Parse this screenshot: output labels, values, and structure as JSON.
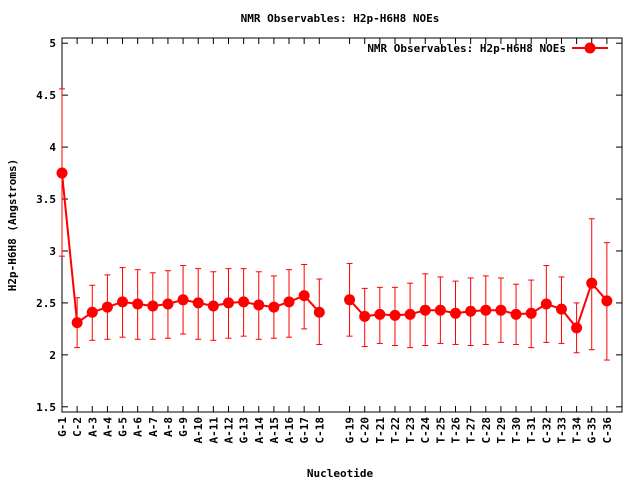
{
  "chart_data": {
    "type": "line",
    "title": "NMR Observables: H2p-H6H8 NOEs",
    "xlabel": "Nucleotide",
    "ylabel": "H2p-H6H8 (Angstroms)",
    "ylim": [
      1.45,
      5.05
    ],
    "yticks": [
      1.5,
      2,
      2.5,
      3,
      3.5,
      4,
      4.5,
      5
    ],
    "ytick_labels": [
      "1.5",
      "2",
      "2.5",
      "3",
      "3.5",
      "4",
      "4.5",
      "5"
    ],
    "legend_position": "top-right",
    "grid": false,
    "color": "#ff0000",
    "categories": [
      "G-1",
      "C-2",
      "A-3",
      "A-4",
      "G-5",
      "A-6",
      "A-7",
      "A-8",
      "G-9",
      "A-10",
      "A-11",
      "A-12",
      "G-13",
      "A-14",
      "A-15",
      "A-16",
      "G-17",
      "C-18",
      "G-19",
      "C-20",
      "T-21",
      "T-22",
      "T-23",
      "C-24",
      "T-25",
      "T-26",
      "T-27",
      "C-28",
      "T-29",
      "T-30",
      "T-31",
      "C-32",
      "T-33",
      "T-34",
      "G-35",
      "C-36"
    ],
    "gap_after_index": 17,
    "series": [
      {
        "name": "NMR Observables: H2p-H6H8 NOEs",
        "values": [
          3.75,
          2.31,
          2.41,
          2.46,
          2.51,
          2.49,
          2.47,
          2.49,
          2.53,
          2.5,
          2.47,
          2.5,
          2.51,
          2.48,
          2.46,
          2.51,
          2.57,
          2.41,
          2.53,
          2.37,
          2.39,
          2.38,
          2.39,
          2.43,
          2.43,
          2.4,
          2.42,
          2.43,
          2.43,
          2.39,
          2.4,
          2.49,
          2.44,
          2.26,
          2.69,
          2.52
        ],
        "err_low": [
          2.95,
          2.07,
          2.14,
          2.15,
          2.17,
          2.15,
          2.15,
          2.16,
          2.2,
          2.15,
          2.14,
          2.16,
          2.18,
          2.15,
          2.16,
          2.17,
          2.25,
          2.1,
          2.18,
          2.08,
          2.11,
          2.09,
          2.07,
          2.09,
          2.11,
          2.1,
          2.09,
          2.1,
          2.12,
          2.1,
          2.07,
          2.12,
          2.11,
          2.02,
          2.05,
          1.95
        ],
        "err_high": [
          4.56,
          2.55,
          2.67,
          2.77,
          2.84,
          2.82,
          2.79,
          2.81,
          2.86,
          2.83,
          2.8,
          2.83,
          2.83,
          2.8,
          2.76,
          2.82,
          2.87,
          2.73,
          2.88,
          2.64,
          2.65,
          2.65,
          2.69,
          2.78,
          2.75,
          2.71,
          2.74,
          2.76,
          2.74,
          2.68,
          2.72,
          2.86,
          2.75,
          2.5,
          3.31,
          3.08
        ]
      }
    ]
  }
}
